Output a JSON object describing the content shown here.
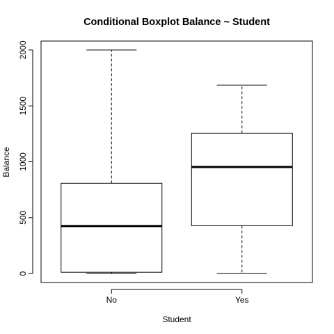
{
  "chart_data": {
    "type": "boxplot",
    "title": "Conditional Boxplot Balance ~ Student",
    "xlabel": "Student",
    "ylabel": "Balance",
    "ylim": [
      -80,
      2080
    ],
    "yticks": [
      0,
      500,
      1000,
      1500,
      2000
    ],
    "categories": [
      "No",
      "Yes"
    ],
    "boxes": [
      {
        "category": "No",
        "min": 0,
        "q1": 12,
        "median": 425,
        "q3": 808,
        "max": 2000
      },
      {
        "category": "Yes",
        "min": 0,
        "q1": 428,
        "median": 953,
        "q3": 1256,
        "max": 1686
      }
    ],
    "grid": false,
    "legend": "none"
  }
}
